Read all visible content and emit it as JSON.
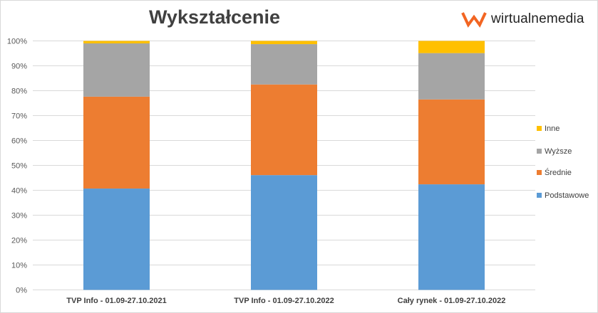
{
  "chart_data": {
    "type": "bar",
    "stacked": "percent",
    "title": "Wykształcenie",
    "categories": [
      "TVP Info - 01.09-27.10.2021",
      "TVP Info - 01.09-27.10.2022",
      "Cały rynek - 01.09-27.10.2022"
    ],
    "series": [
      {
        "name": "Podstawowe",
        "color": "#5b9bd5",
        "values": [
          40.7,
          46.1,
          42.4
        ]
      },
      {
        "name": "Średnie",
        "color": "#ed7d31",
        "values": [
          36.9,
          36.4,
          34.1
        ]
      },
      {
        "name": "Wyższe",
        "color": "#a5a5a5",
        "values": [
          21.4,
          16.2,
          18.6
        ]
      },
      {
        "name": "Inne",
        "color": "#ffc000",
        "values": [
          1.0,
          1.3,
          4.9
        ]
      }
    ],
    "ylim": [
      0,
      100
    ],
    "yticks": [
      "0%",
      "10%",
      "20%",
      "30%",
      "40%",
      "50%",
      "60%",
      "70%",
      "80%",
      "90%",
      "100%"
    ],
    "grid": true,
    "legend": "right"
  },
  "logo": {
    "text": "wirtualnemedia",
    "color": "#f26522"
  }
}
